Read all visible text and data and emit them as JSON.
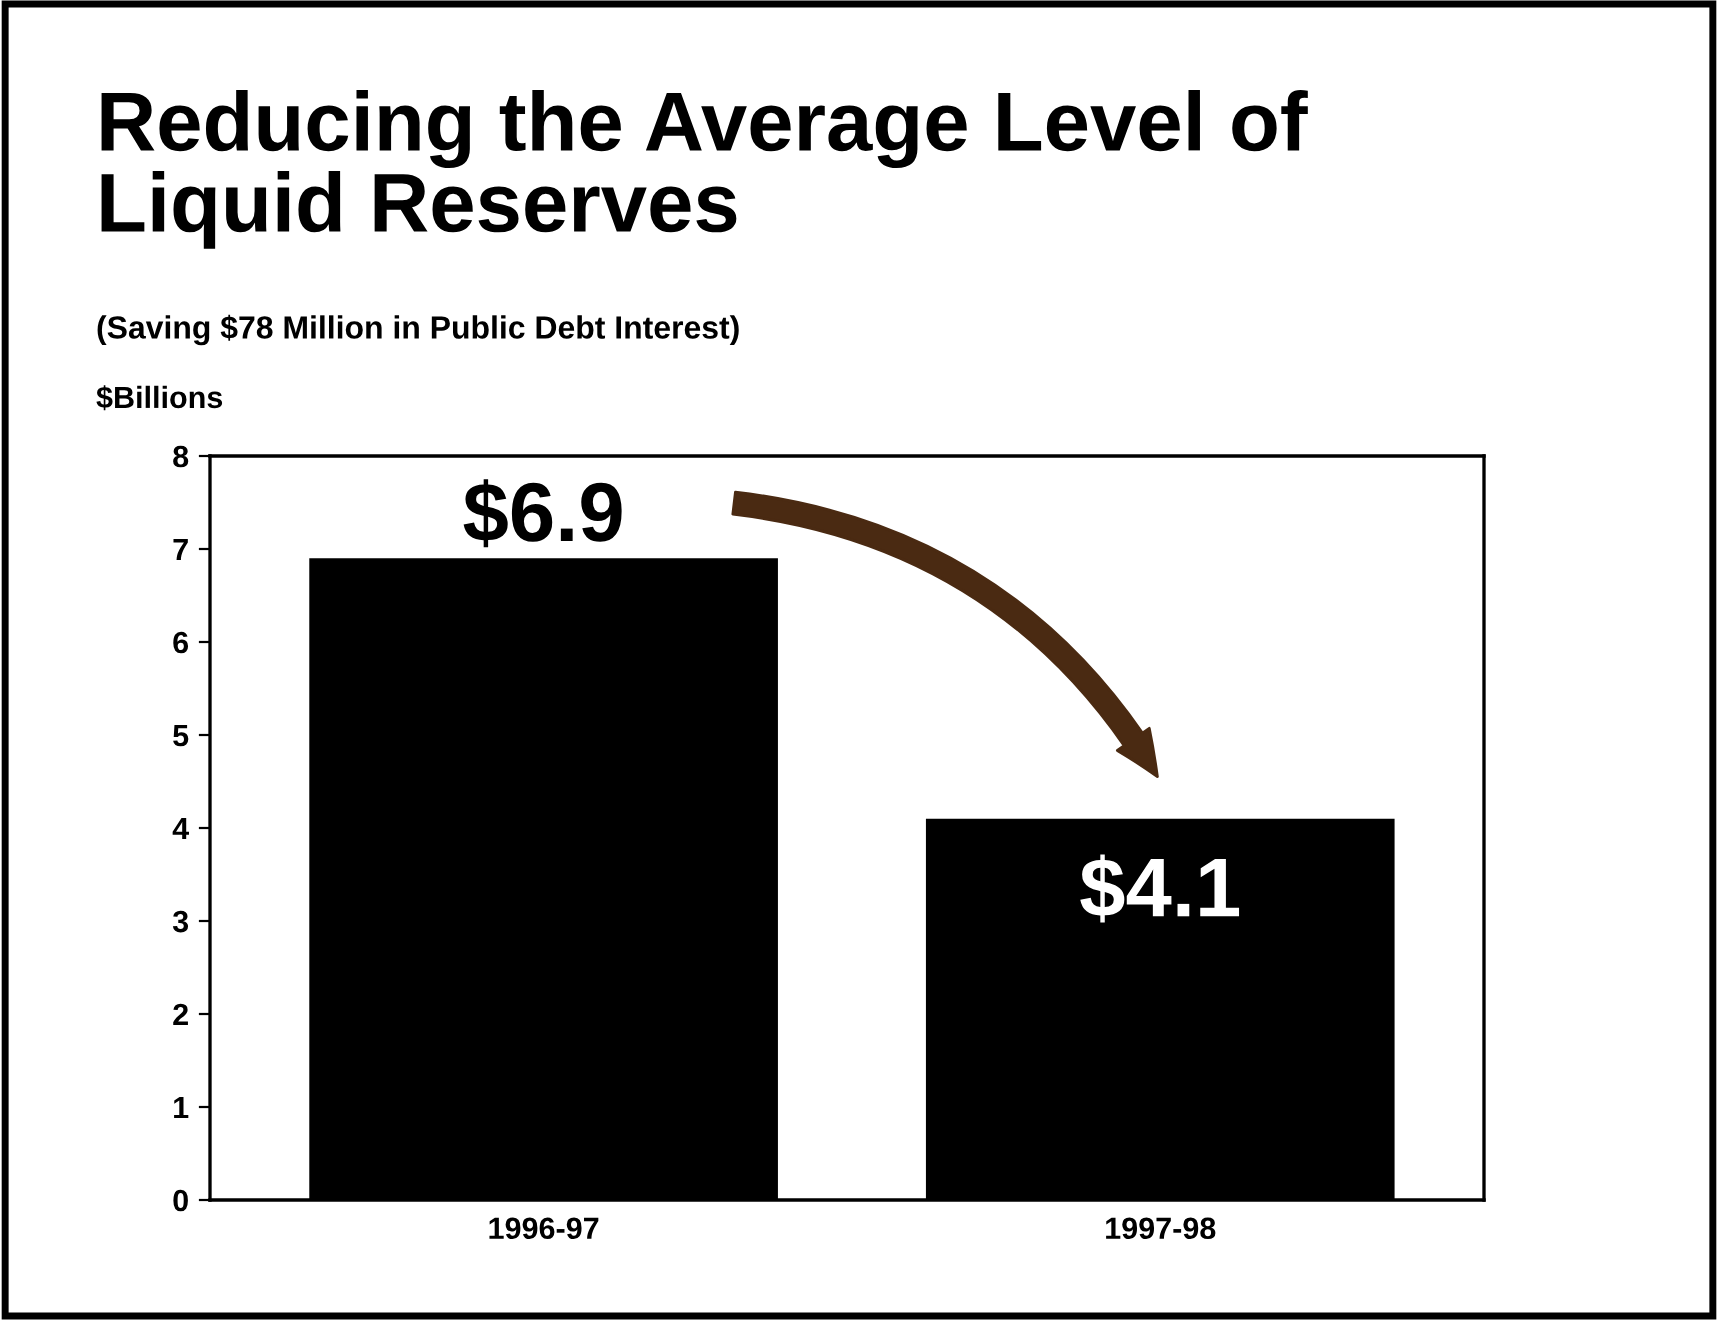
{
  "chart_data": {
    "type": "bar",
    "title": "Reducing the Average Level of\nLiquid Reserves",
    "subtitle": "(Saving $78 Million in Public Debt Interest)",
    "ylabel": "$Billions",
    "categories": [
      "1996-97",
      "1997-98"
    ],
    "values": [
      6.9,
      4.1
    ],
    "value_labels": [
      "$6.9",
      "$4.1"
    ],
    "color": "#000000",
    "ylim": [
      0,
      8
    ],
    "yticks": [
      0,
      1,
      2,
      3,
      4,
      5,
      6,
      7,
      8
    ],
    "grid": false
  }
}
